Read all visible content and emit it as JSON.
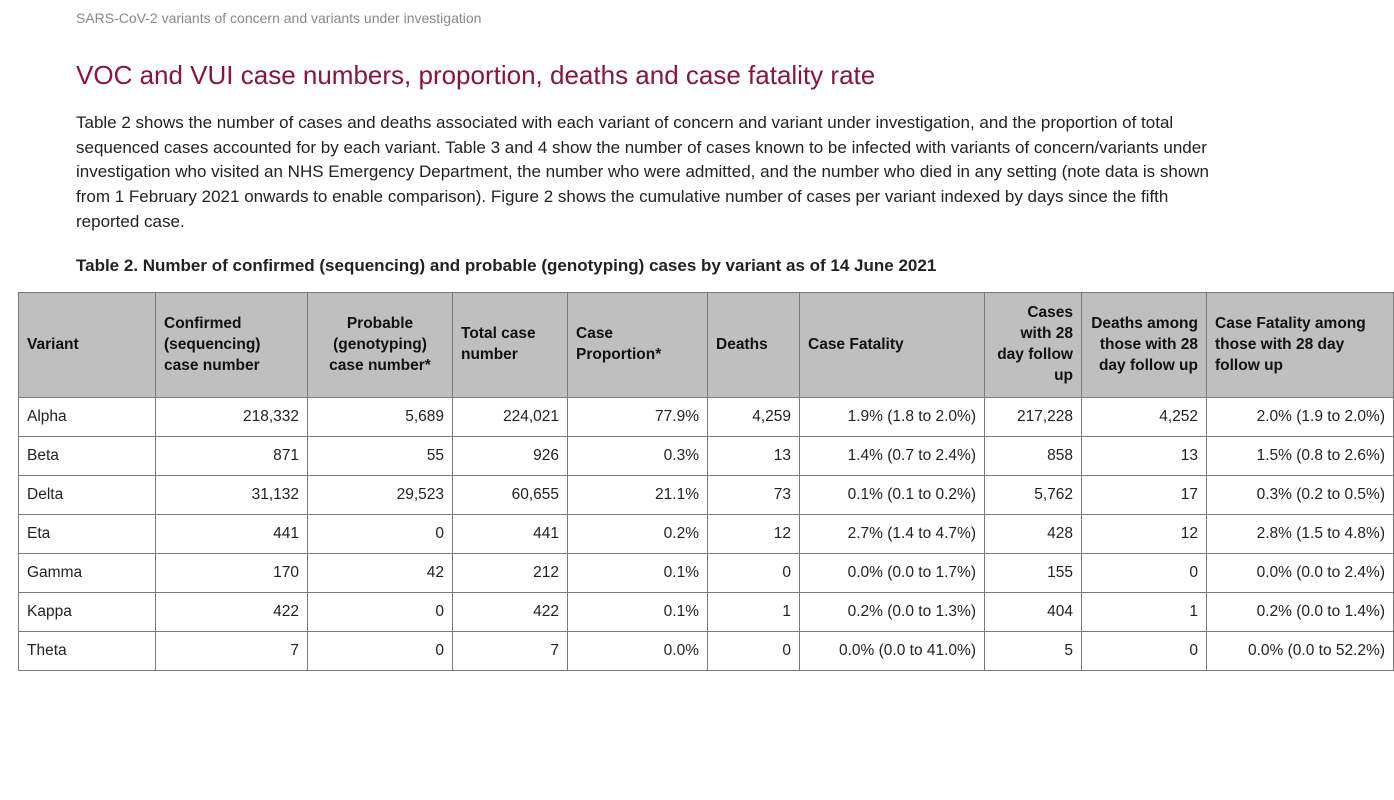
{
  "header": {
    "subheader": "SARS-CoV-2 variants of concern and variants under investigation",
    "title": "VOC and VUI case numbers, proportion, deaths and case fatality rate",
    "intro": "Table 2 shows the number of cases and deaths associated with each variant of concern and variant under investigation, and the proportion of total sequenced cases accounted for by each variant. Table 3 and 4 show the number of cases known to be infected with variants of concern/variants under investigation who visited an NHS Emergency Department, the number who were admitted, and the number who died in any setting (note data is shown from 1 February 2021 onwards to enable comparison). Figure 2 shows the cumulative number of cases per variant indexed by days since the fifth reported case.",
    "table_caption": "Table 2. Number of confirmed (sequencing) and probable (genotyping) cases by variant as of 14 June 2021"
  },
  "table": {
    "type": "table",
    "background_color": "#ffffff",
    "header_background": "#bfbfbf",
    "border_color": "#7a7a7a",
    "text_color": "#222222",
    "title_color": "#8a1538",
    "columns": [
      {
        "key": "variant",
        "label": "Variant",
        "class": "col-variant",
        "align": "left"
      },
      {
        "key": "confirmed",
        "label": "Confirmed (sequencing) case number",
        "class": "col-confirmed",
        "align": "right"
      },
      {
        "key": "probable",
        "label": "Probable (genotyping) case number*",
        "class": "col-probable",
        "align": "right"
      },
      {
        "key": "total",
        "label": "Total case number",
        "class": "col-total",
        "align": "right"
      },
      {
        "key": "prop",
        "label": "Case Proportion*",
        "class": "col-prop",
        "align": "right"
      },
      {
        "key": "deaths",
        "label": "Deaths",
        "class": "col-deaths",
        "align": "right"
      },
      {
        "key": "cfr",
        "label": "Case Fatality",
        "class": "col-cfr",
        "align": "right"
      },
      {
        "key": "follow",
        "label": "Cases with 28 day follow up",
        "class": "col-follow",
        "align": "right"
      },
      {
        "key": "dfollow",
        "label": "Deaths among those with 28 day follow up",
        "class": "col-dfollow",
        "align": "right"
      },
      {
        "key": "cfrf",
        "label": "Case Fatality among those with 28 day follow up",
        "class": "col-cfrf",
        "align": "right"
      }
    ],
    "rows": [
      {
        "variant": "Alpha",
        "confirmed": "218,332",
        "probable": "5,689",
        "total": "224,021",
        "prop": "77.9%",
        "deaths": "4,259",
        "cfr": "1.9% (1.8 to 2.0%)",
        "follow": "217,228",
        "dfollow": "4,252",
        "cfrf": "2.0% (1.9 to 2.0%)"
      },
      {
        "variant": "Beta",
        "confirmed": "871",
        "probable": "55",
        "total": "926",
        "prop": "0.3%",
        "deaths": "13",
        "cfr": "1.4% (0.7 to 2.4%)",
        "follow": "858",
        "dfollow": "13",
        "cfrf": "1.5% (0.8 to 2.6%)"
      },
      {
        "variant": "Delta",
        "confirmed": "31,132",
        "probable": "29,523",
        "total": "60,655",
        "prop": "21.1%",
        "deaths": "73",
        "cfr": "0.1% (0.1 to 0.2%)",
        "follow": "5,762",
        "dfollow": "17",
        "cfrf": "0.3% (0.2 to 0.5%)"
      },
      {
        "variant": "Eta",
        "confirmed": "441",
        "probable": "0",
        "total": "441",
        "prop": "0.2%",
        "deaths": "12",
        "cfr": "2.7% (1.4 to 4.7%)",
        "follow": "428",
        "dfollow": "12",
        "cfrf": "2.8% (1.5 to 4.8%)"
      },
      {
        "variant": "Gamma",
        "confirmed": "170",
        "probable": "42",
        "total": "212",
        "prop": "0.1%",
        "deaths": "0",
        "cfr": "0.0% (0.0 to 1.7%)",
        "follow": "155",
        "dfollow": "0",
        "cfrf": "0.0% (0.0 to 2.4%)"
      },
      {
        "variant": "Kappa",
        "confirmed": "422",
        "probable": "0",
        "total": "422",
        "prop": "0.1%",
        "deaths": "1",
        "cfr": "0.2% (0.0 to 1.3%)",
        "follow": "404",
        "dfollow": "1",
        "cfrf": "0.2% (0.0 to 1.4%)"
      },
      {
        "variant": "Theta",
        "confirmed": "7",
        "probable": "0",
        "total": "7",
        "prop": "0.0%",
        "deaths": "0",
        "cfr": "0.0% (0.0 to 41.0%)",
        "follow": "5",
        "dfollow": "0",
        "cfrf": "0.0% (0.0 to 52.2%)"
      }
    ]
  }
}
